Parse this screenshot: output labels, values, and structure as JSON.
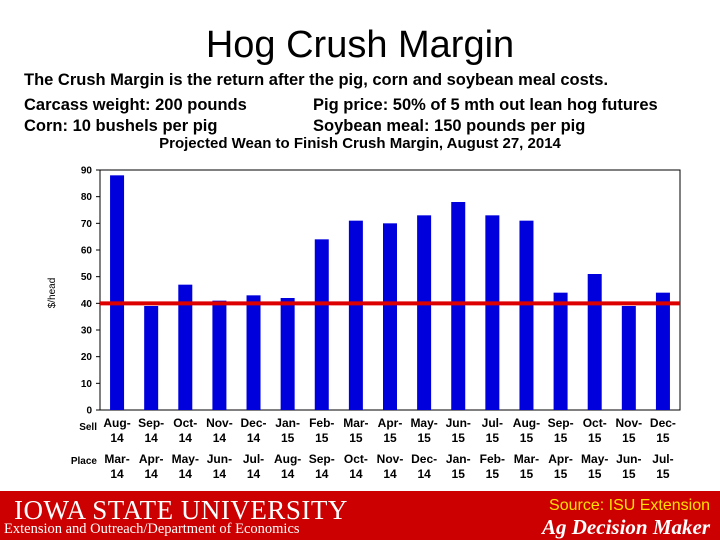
{
  "slide": {
    "title": "Hog Crush Margin",
    "line1": "The Crush Margin is the return after the pig, corn and soybean meal costs.",
    "line2a": "Carcass weight:  200 pounds",
    "line2b": "Pig price:  50% of 5 mth out lean hog futures",
    "line3a": "Corn:  10 bushels per pig",
    "line3b": "Soybean meal:  150 pounds per pig"
  },
  "footer": {
    "logo": "IOWA STATE UNIVERSITY",
    "subtitle": "Extension and Outreach/Department of Economics",
    "source": "Source: ISU Extension",
    "brand": "Ag Decision Maker"
  },
  "chart_data": {
    "type": "bar",
    "title": "Projected Wean to Finish Crush Margin, August 27, 2014",
    "ylabel": "$/head",
    "ylim": [
      0,
      90
    ],
    "yticks": [
      0,
      10,
      20,
      30,
      40,
      50,
      60,
      70,
      80,
      90
    ],
    "row_labels": [
      "Sell",
      "Place"
    ],
    "sell_labels": [
      [
        "Aug-",
        "14"
      ],
      [
        "Sep-",
        "14"
      ],
      [
        "Oct-",
        "14"
      ],
      [
        "Nov-",
        "14"
      ],
      [
        "Dec-",
        "14"
      ],
      [
        "Jan-",
        "15"
      ],
      [
        "Feb-",
        "15"
      ],
      [
        "Mar-",
        "15"
      ],
      [
        "Apr-",
        "15"
      ],
      [
        "May-",
        "15"
      ],
      [
        "Jun-",
        "15"
      ],
      [
        "Jul-",
        "15"
      ],
      [
        "Aug-",
        "15"
      ],
      [
        "Sep-",
        "15"
      ],
      [
        "Oct-",
        "15"
      ],
      [
        "Nov-",
        "15"
      ],
      [
        "Dec-",
        "15"
      ]
    ],
    "place_labels": [
      [
        "Mar-",
        "14"
      ],
      [
        "Apr-",
        "14"
      ],
      [
        "May-",
        "14"
      ],
      [
        "Jun-",
        "14"
      ],
      [
        "Jul-",
        "14"
      ],
      [
        "Aug-",
        "14"
      ],
      [
        "Sep-",
        "14"
      ],
      [
        "Oct-",
        "14"
      ],
      [
        "Nov-",
        "14"
      ],
      [
        "Dec-",
        "14"
      ],
      [
        "Jan-",
        "15"
      ],
      [
        "Feb-",
        "15"
      ],
      [
        "Mar-",
        "15"
      ],
      [
        "Apr-",
        "15"
      ],
      [
        "May-",
        "15"
      ],
      [
        "Jun-",
        "15"
      ],
      [
        "Jul-",
        "15"
      ]
    ],
    "values": [
      88,
      39,
      47,
      41,
      43,
      42,
      64,
      71,
      70,
      73,
      78,
      73,
      71,
      44,
      51,
      39,
      44
    ],
    "bar_color": "#0000dd",
    "reference_line": {
      "value": 40,
      "color": "#dd0000"
    },
    "grid": false,
    "legend": "none"
  }
}
